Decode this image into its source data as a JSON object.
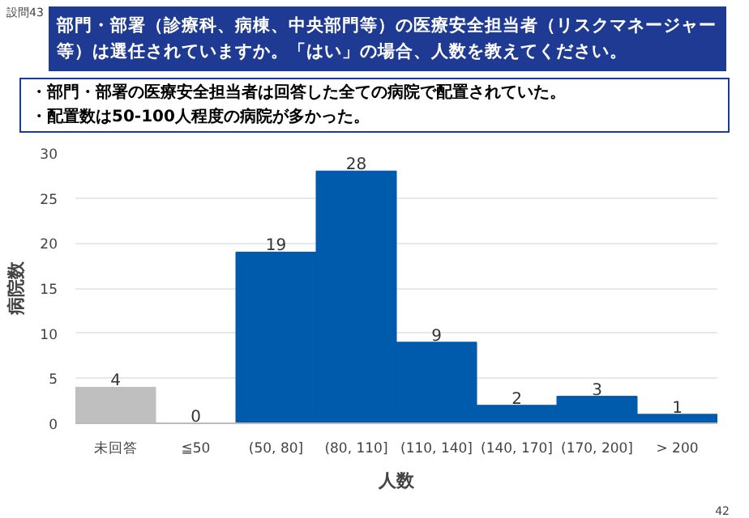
{
  "chart_data": {
    "type": "bar",
    "title": "部門・部署（診療科、病棟、中央部門等）の医療安全担当者（リスクマネージャー等）は選任されていますか。「はい」の場合、人数を教えてください。",
    "annotations": [
      "設問43",
      "・部門・部署の医療安全担当者は回答した全ての病院で配置されていた。",
      "・配置数は50-100人程度の病院が多かった。",
      "42"
    ],
    "categories": [
      "未回答",
      "≦50",
      "(50, 80]",
      "(80, 110]",
      "(110, 140]",
      "(140, 170]",
      "(170, 200]",
      "> 200"
    ],
    "values": [
      4,
      0,
      19,
      28,
      9,
      2,
      3,
      1
    ],
    "colors": [
      "#bfbfbf",
      "#005bac",
      "#005bac",
      "#005bac",
      "#005bac",
      "#005bac",
      "#005bac",
      "#005bac"
    ],
    "xlabel": "人数",
    "ylabel": "病院数",
    "ylim": [
      0,
      30
    ],
    "yticks": [
      0,
      5,
      10,
      15,
      20,
      25,
      30
    ],
    "grid": "y",
    "data_labels": true
  }
}
